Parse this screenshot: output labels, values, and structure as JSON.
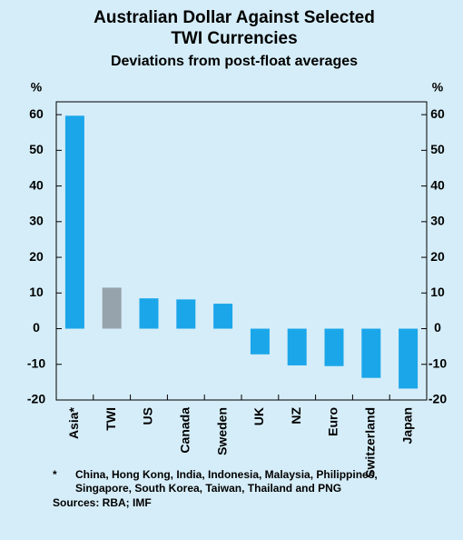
{
  "chart_data": {
    "type": "bar",
    "title": [
      "Australian Dollar Against Selected",
      "TWI Currencies"
    ],
    "subtitle": "Deviations from post-float averages",
    "ylabel": "%",
    "y2label": "%",
    "categories": [
      "Asia*",
      "TWI",
      "US",
      "Canada",
      "Sweden",
      "UK",
      "NZ",
      "Euro",
      "Switzerland",
      "Japan"
    ],
    "values": [
      59.7,
      11.5,
      8.5,
      8.2,
      7,
      -7.2,
      -10.3,
      -10.5,
      -13.8,
      -16.8
    ],
    "colors": [
      "#1ba6ea",
      "#97a3ac",
      "#1ba6ea",
      "#1ba6ea",
      "#1ba6ea",
      "#1ba6ea",
      "#1ba6ea",
      "#1ba6ea",
      "#1ba6ea",
      "#1ba6ea"
    ],
    "ylim": [
      -20,
      63.6
    ],
    "yticks": [
      -20,
      -10,
      0,
      10,
      20,
      30,
      40,
      50,
      60
    ],
    "y2lim": [
      -20,
      63.6
    ],
    "y2ticks": [
      -20,
      -10,
      0,
      10,
      20,
      30,
      40,
      50,
      60
    ],
    "notes": [
      "*",
      "China, Hong Kong, India, Indonesia, Malaysia, Philippines,",
      "Singapore, South Korea, Taiwan, Thailand and PNG",
      "Sources: RBA; IMF"
    ]
  }
}
